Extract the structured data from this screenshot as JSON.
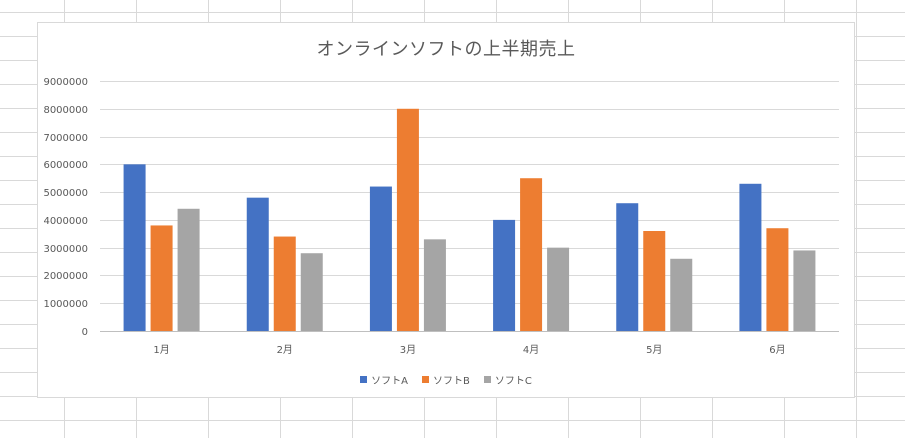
{
  "chart_data": {
    "type": "bar",
    "title": "オンラインソフトの上半期売上",
    "xlabel": "",
    "ylabel": "",
    "categories": [
      "1月",
      "2月",
      "3月",
      "4月",
      "5月",
      "6月"
    ],
    "series": [
      {
        "name": "ソフトA",
        "color": "#4472C4",
        "values": [
          6000000,
          4800000,
          5200000,
          4000000,
          4600000,
          5300000
        ]
      },
      {
        "name": "ソフトB",
        "color": "#ED7D31",
        "values": [
          3800000,
          3400000,
          8000000,
          5500000,
          3600000,
          3700000
        ]
      },
      {
        "name": "ソフトC",
        "color": "#A5A5A5",
        "values": [
          4400000,
          2800000,
          3300000,
          3000000,
          2600000,
          2900000
        ]
      }
    ],
    "ylim": [
      0,
      9000000
    ],
    "yticks": [
      "0",
      "1000000",
      "2000000",
      "3000000",
      "4000000",
      "5000000",
      "6000000",
      "7000000",
      "8000000",
      "9000000"
    ],
    "grid": true,
    "legend_position": "bottom"
  }
}
